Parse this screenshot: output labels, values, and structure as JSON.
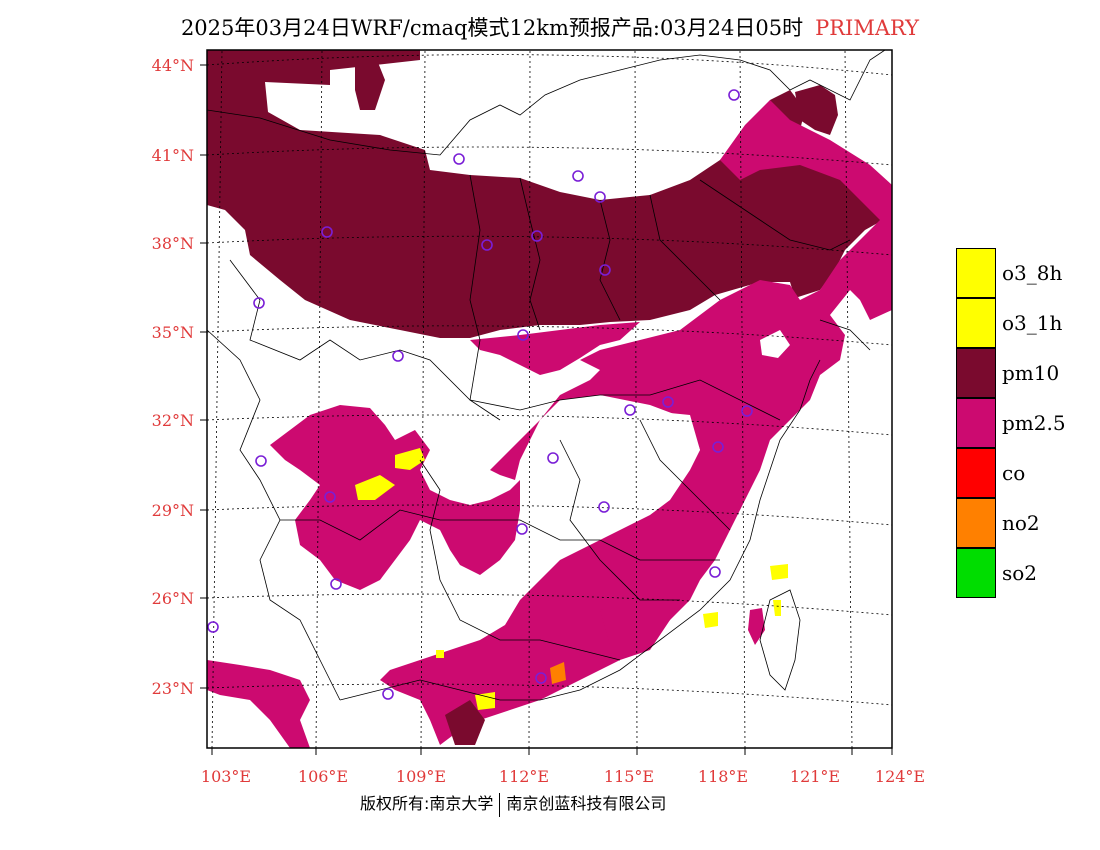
{
  "title": {
    "main": "2025年03月24日WRF/cmaq模式12km预报产品:03月24日05时",
    "tag": "PRIMARY"
  },
  "footer": {
    "left": "版权所有:南京大学",
    "right": "南京创蓝科技有限公司"
  },
  "axes": {
    "lat_labels": [
      "44°N",
      "41°N",
      "38°N",
      "35°N",
      "32°N",
      "29°N",
      "26°N",
      "23°N"
    ],
    "lon_labels": [
      "103°E",
      "106°E",
      "109°E",
      "112°E",
      "115°E",
      "118°E",
      "121°E",
      "124°E"
    ],
    "label_color": "#e03a3a"
  },
  "legend": [
    {
      "label": "o3_8h",
      "color": "#ffff00"
    },
    {
      "label": "o3_1h",
      "color": "#ffff00"
    },
    {
      "label": "pm10",
      "color": "#7a0a2e"
    },
    {
      "label": "pm2.5",
      "color": "#cc0a70"
    },
    {
      "label": "co",
      "color": "#ff0000"
    },
    {
      "label": "no2",
      "color": "#ff8000"
    },
    {
      "label": "so2",
      "color": "#00dd00"
    }
  ],
  "colors": {
    "pm10": "#7a0a2e",
    "pm25": "#cc0a70",
    "o3": "#ffff00",
    "no2": "#ff8000",
    "station": "#7a1fd6"
  }
}
